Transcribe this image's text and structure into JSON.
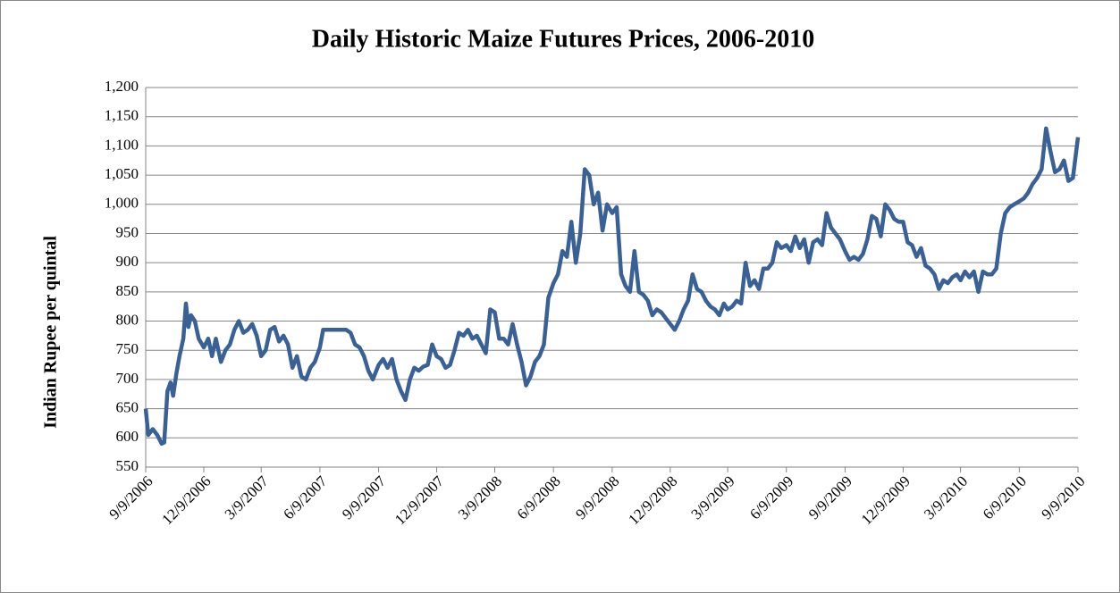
{
  "chart_data": {
    "type": "line",
    "title": "Daily Historic Maize Futures Prices, 2006-2010",
    "y_label": "Indian Rupee per quintal",
    "x": [
      "9/9/2006",
      "9/13/2006",
      "9/20/2006",
      "9/27/2006",
      "10/4/2006",
      "10/8/2006",
      "10/13/2006",
      "10/18/2006",
      "10/22/2006",
      "10/27/2006",
      "11/1/2006",
      "11/7/2006",
      "11/11/2006",
      "11/15/2006",
      "11/19/2006",
      "11/25/2006",
      "12/1/2006",
      "12/9/2006",
      "12/16/2006",
      "12/22/2006",
      "12/28/2006",
      "1/5/2007",
      "1/12/2007",
      "1/19/2007",
      "1/26/2007",
      "2/2/2007",
      "2/9/2007",
      "2/16/2007",
      "2/23/2007",
      "3/2/2007",
      "3/9/2007",
      "3/16/2007",
      "3/23/2007",
      "3/30/2007",
      "4/6/2007",
      "4/13/2007",
      "4/20/2007",
      "4/27/2007",
      "5/4/2007",
      "5/11/2007",
      "5/18/2007",
      "5/25/2007",
      "6/1/2007",
      "6/9/2007",
      "6/14/2007",
      "7/20/2007",
      "7/27/2007",
      "8/3/2007",
      "8/10/2007",
      "8/17/2007",
      "8/24/2007",
      "8/31/2007",
      "9/9/2007",
      "9/16/2007",
      "9/23/2007",
      "9/30/2007",
      "10/7/2007",
      "10/14/2007",
      "10/21/2007",
      "10/28/2007",
      "11/4/2007",
      "11/11/2007",
      "11/18/2007",
      "11/25/2007",
      "12/2/2007",
      "12/9/2007",
      "12/16/2007",
      "12/23/2007",
      "12/30/2007",
      "1/6/2008",
      "1/13/2008",
      "1/20/2008",
      "1/27/2008",
      "2/3/2008",
      "2/10/2008",
      "2/17/2008",
      "2/24/2008",
      "3/2/2008",
      "3/9/2008",
      "3/16/2008",
      "3/23/2008",
      "3/30/2008",
      "4/6/2008",
      "4/13/2008",
      "4/20/2008",
      "4/27/2008",
      "5/4/2008",
      "5/11/2008",
      "5/18/2008",
      "5/25/2008",
      "6/1/2008",
      "6/9/2008",
      "6/16/2008",
      "6/23/2008",
      "6/30/2008",
      "7/7/2008",
      "7/14/2008",
      "7/21/2008",
      "7/28/2008",
      "8/4/2008",
      "8/11/2008",
      "8/18/2008",
      "8/25/2008",
      "9/1/2008",
      "9/9/2008",
      "9/16/2008",
      "9/23/2008",
      "9/30/2008",
      "10/7/2008",
      "10/14/2008",
      "10/21/2008",
      "10/28/2008",
      "11/4/2008",
      "11/11/2008",
      "11/18/2008",
      "11/25/2008",
      "12/2/2008",
      "12/9/2008",
      "12/16/2008",
      "12/23/2008",
      "12/30/2008",
      "1/6/2009",
      "1/13/2009",
      "1/20/2009",
      "1/27/2009",
      "2/3/2009",
      "2/10/2009",
      "2/17/2009",
      "2/24/2009",
      "3/3/2009",
      "3/9/2009",
      "3/16/2009",
      "3/23/2009",
      "3/30/2009",
      "4/6/2009",
      "4/13/2009",
      "4/20/2009",
      "4/27/2009",
      "5/4/2009",
      "5/11/2009",
      "5/18/2009",
      "5/25/2009",
      "6/1/2009",
      "6/9/2009",
      "6/16/2009",
      "6/23/2009",
      "6/30/2009",
      "7/7/2009",
      "7/14/2009",
      "7/21/2009",
      "7/28/2009",
      "8/4/2009",
      "8/11/2009",
      "8/18/2009",
      "8/25/2009",
      "9/1/2009",
      "9/9/2009",
      "9/16/2009",
      "9/23/2009",
      "9/30/2009",
      "10/7/2009",
      "10/14/2009",
      "10/21/2009",
      "10/28/2009",
      "11/4/2009",
      "11/11/2009",
      "11/18/2009",
      "11/25/2009",
      "12/2/2009",
      "12/9/2009",
      "12/16/2009",
      "12/23/2009",
      "12/30/2009",
      "1/6/2010",
      "1/13/2010",
      "1/20/2010",
      "1/27/2010",
      "2/3/2010",
      "2/10/2010",
      "2/17/2010",
      "2/24/2010",
      "3/3/2010",
      "3/9/2010",
      "3/16/2010",
      "3/23/2010",
      "3/30/2010",
      "4/6/2010",
      "4/13/2010",
      "4/20/2010",
      "4/27/2010",
      "5/4/2010",
      "5/11/2010",
      "5/18/2010",
      "5/25/2010",
      "6/1/2010",
      "6/9/2010",
      "6/16/2010",
      "6/23/2010",
      "6/30/2010",
      "7/7/2010",
      "7/14/2010",
      "7/21/2010",
      "7/28/2010",
      "8/4/2010",
      "8/11/2010",
      "8/18/2010",
      "8/25/2010",
      "9/1/2010",
      "9/9/2010"
    ],
    "series": [
      {
        "name": "Maize",
        "color": "#3a6195",
        "values": [
          650,
          605,
          615,
          605,
          590,
          592,
          680,
          695,
          672,
          710,
          740,
          770,
          830,
          790,
          810,
          800,
          770,
          755,
          770,
          740,
          770,
          730,
          750,
          760,
          785,
          800,
          780,
          785,
          795,
          775,
          740,
          750,
          785,
          790,
          765,
          775,
          760,
          720,
          740,
          705,
          700,
          720,
          730,
          755,
          785,
          785,
          780,
          760,
          755,
          740,
          715,
          700,
          725,
          735,
          720,
          735,
          700,
          680,
          665,
          700,
          720,
          715,
          722,
          725,
          760,
          740,
          735,
          720,
          725,
          750,
          780,
          775,
          785,
          770,
          775,
          760,
          745,
          820,
          815,
          770,
          770,
          760,
          795,
          760,
          730,
          690,
          705,
          730,
          740,
          760,
          840,
          865,
          880,
          920,
          910,
          970,
          900,
          950,
          1060,
          1050,
          1000,
          1020,
          955,
          1000,
          985,
          995,
          880,
          860,
          850,
          920,
          850,
          845,
          835,
          810,
          820,
          815,
          805,
          795,
          785,
          800,
          820,
          835,
          880,
          855,
          850,
          835,
          825,
          820,
          810,
          830,
          820,
          825,
          835,
          830,
          900,
          860,
          870,
          855,
          890,
          890,
          900,
          935,
          925,
          930,
          920,
          945,
          925,
          940,
          900,
          935,
          940,
          930,
          985,
          960,
          950,
          940,
          920,
          905,
          910,
          905,
          915,
          940,
          980,
          975,
          945,
          1000,
          990,
          975,
          970,
          970,
          935,
          930,
          910,
          925,
          895,
          890,
          880,
          855,
          870,
          865,
          875,
          880,
          870,
          885,
          875,
          885,
          850,
          885,
          880,
          880,
          890,
          950,
          985,
          995,
          1000,
          1005,
          1010,
          1020,
          1035,
          1045,
          1060,
          1130,
          1090,
          1055,
          1060,
          1075,
          1040,
          1045,
          1115
        ]
      }
    ],
    "xlim": [
      "9/9/2006",
      "9/9/2010"
    ],
    "xticks": [
      "9/9/2006",
      "12/9/2006",
      "3/9/2007",
      "6/9/2007",
      "9/9/2007",
      "12/9/2007",
      "3/9/2008",
      "6/9/2008",
      "9/9/2008",
      "12/9/2008",
      "3/9/2009",
      "6/9/2009",
      "9/9/2009",
      "12/9/2009",
      "3/9/2010",
      "6/9/2010",
      "9/9/2010"
    ],
    "ylim": [
      550,
      1200
    ],
    "yticks": [
      550,
      600,
      650,
      700,
      750,
      800,
      850,
      900,
      950,
      {
        "value": 1000,
        "label": "1,000"
      },
      {
        "value": 1050,
        "label": "1,050"
      },
      {
        "value": 1100,
        "label": "1,100"
      },
      {
        "value": 1150,
        "label": "1,150"
      },
      {
        "value": 1200,
        "label": "1,200"
      }
    ],
    "grid": true
  }
}
